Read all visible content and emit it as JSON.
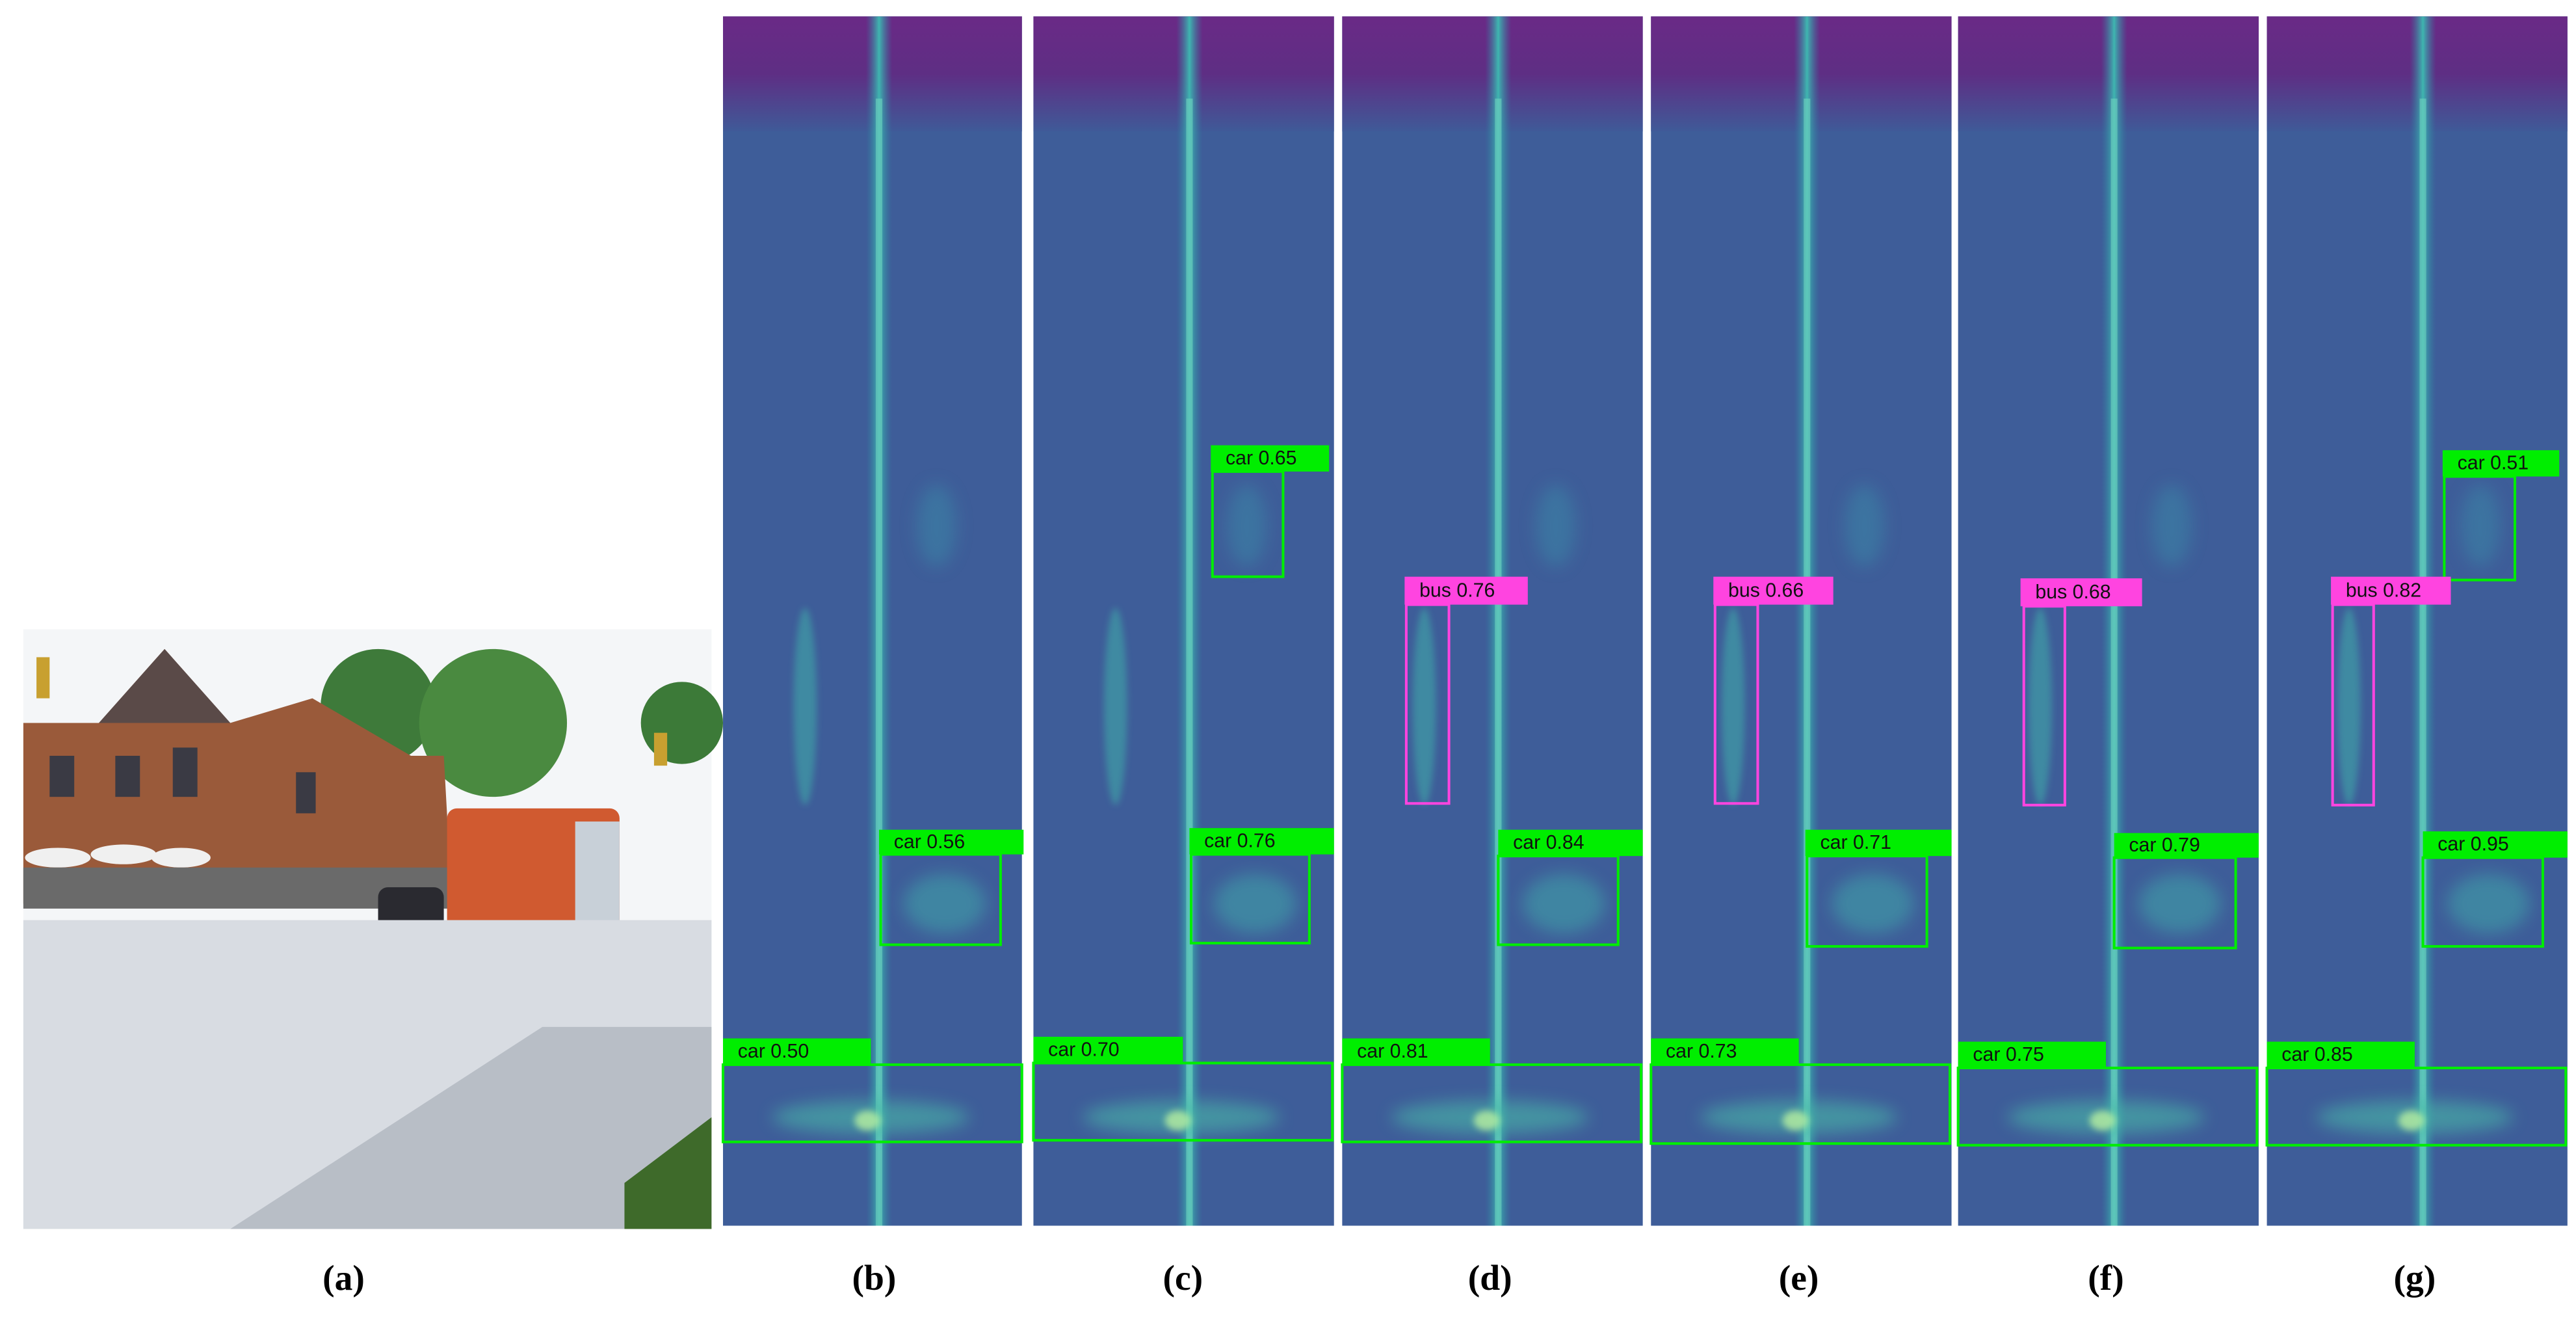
{
  "figure": {
    "panels": [
      {
        "caption": "(a)"
      },
      {
        "caption": "(b)",
        "detections": [
          {
            "label": "car 0.56",
            "color": "#00ee00"
          },
          {
            "label": "car 0.50",
            "color": "#00ee00"
          }
        ]
      },
      {
        "caption": "(c)",
        "detections": [
          {
            "label": "car 0.65",
            "color": "#00ee00"
          },
          {
            "label": "car 0.76",
            "color": "#00ee00"
          },
          {
            "label": "car 0.70",
            "color": "#00ee00"
          }
        ]
      },
      {
        "caption": "(d)",
        "detections": [
          {
            "label": "bus 0.76",
            "color": "#ff44e0"
          },
          {
            "label": "car 0.84",
            "color": "#00ee00"
          },
          {
            "label": "car 0.81",
            "color": "#00ee00"
          }
        ]
      },
      {
        "caption": "(e)",
        "detections": [
          {
            "label": "bus 0.66",
            "color": "#ff44e0"
          },
          {
            "label": "car 0.71",
            "color": "#00ee00"
          },
          {
            "label": "car 0.73",
            "color": "#00ee00"
          }
        ]
      },
      {
        "caption": "(f)",
        "detections": [
          {
            "label": "bus 0.68",
            "color": "#ff44e0"
          },
          {
            "label": "car 0.79",
            "color": "#00ee00"
          },
          {
            "label": "car 0.75",
            "color": "#00ee00"
          }
        ]
      },
      {
        "caption": "(g)",
        "detections": [
          {
            "label": "car 0.51",
            "color": "#00ee00"
          },
          {
            "label": "bus 0.82",
            "color": "#ff44e0"
          },
          {
            "label": "car 0.95",
            "color": "#00ee00"
          },
          {
            "label": "car 0.85",
            "color": "#00ee00"
          }
        ]
      }
    ]
  }
}
